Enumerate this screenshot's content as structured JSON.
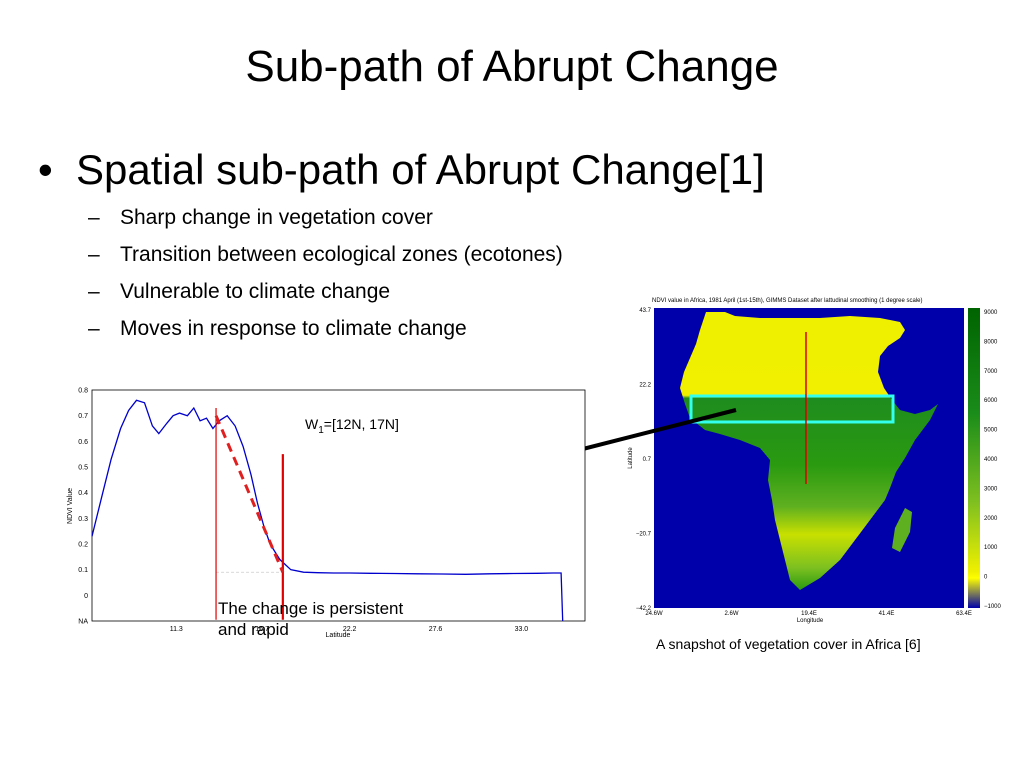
{
  "slide": {
    "title": "Sub-path of Abrupt Change",
    "bullet": "Spatial sub-path of Abrupt Change[1]",
    "sub_bullets": [
      "Sharp change in vegetation cover",
      "Transition between ecological zones (ecotones)",
      "Vulnerable to climate change",
      "Moves in response to climate change"
    ],
    "annotation": "The change is persistent and rapid",
    "window_label_main": "W",
    "window_label_sub": "1",
    "window_label_rest": "=[12N, 17N]",
    "caption": "A snapshot of vegetation cover in Africa [6]",
    "colors": {
      "ndvi_line": "#0000cc",
      "marker": "#e00000",
      "highlight_box": "#33ffee"
    }
  },
  "chart_data": [
    {
      "type": "line",
      "ylabel": "NDVI Value",
      "xlabel": "Latitude",
      "yticks": [
        "0.8",
        "0.7",
        "0.6",
        "0.5",
        "0.4",
        "0.3",
        "0.2",
        "0.1",
        "0",
        "NA"
      ],
      "xticks": [
        "11.3",
        "16.7",
        "22.2",
        "27.6",
        "33.0"
      ],
      "ylim": [
        -0.1,
        0.8
      ],
      "xlim": [
        6.0,
        37.0
      ],
      "series": [
        {
          "x": [
            6.0,
            6.6,
            7.2,
            7.8,
            8.3,
            8.8,
            9.3,
            9.8,
            10.2,
            10.7,
            11.1,
            11.5,
            12.0,
            12.4,
            12.8,
            13.2,
            13.6,
            14.0,
            14.5,
            15.0,
            15.5,
            16.0,
            16.4,
            16.8,
            17.2,
            17.8,
            18.5,
            19.3,
            20.2,
            21.2,
            22.2,
            23.5,
            25.0,
            26.5,
            28.0,
            29.5,
            31.0,
            32.5,
            34.0,
            35.0,
            35.5,
            35.6
          ],
          "y": [
            0.23,
            0.38,
            0.53,
            0.65,
            0.72,
            0.76,
            0.75,
            0.66,
            0.63,
            0.67,
            0.7,
            0.71,
            0.7,
            0.73,
            0.68,
            0.69,
            0.65,
            0.68,
            0.7,
            0.66,
            0.58,
            0.47,
            0.36,
            0.27,
            0.2,
            0.14,
            0.1,
            0.09,
            0.088,
            0.087,
            0.087,
            0.086,
            0.085,
            0.084,
            0.083,
            0.082,
            0.084,
            0.085,
            0.086,
            0.087,
            0.087,
            -0.1
          ]
        }
      ],
      "markers": [
        {
          "x": 13.8,
          "label": ""
        },
        {
          "x": 18.0,
          "label": ""
        }
      ],
      "trend": {
        "x": [
          13.8,
          18.0
        ],
        "y": [
          0.7,
          0.09
        ]
      }
    },
    {
      "type": "heatmap",
      "title": "NDVI value in Africa, 1981 April (1st-15th), GIMMS Dataset after lattudinal smoothing (1 degree scale)",
      "xlabel": "Longitude",
      "ylabel": "Latitude",
      "xticks": [
        "24.6W",
        "2.6W",
        "19.4E",
        "41.4E",
        "63.4E"
      ],
      "yticks": [
        "43.7",
        "22.2",
        "0.7",
        "−20.7",
        "−42.2"
      ],
      "colorbar_ticks": [
        "9000",
        "8000",
        "7000",
        "6000",
        "5000",
        "4000",
        "3000",
        "2000",
        "1000",
        "0",
        "−1000"
      ],
      "colorbar_range": [
        -1000,
        9000
      ]
    }
  ]
}
